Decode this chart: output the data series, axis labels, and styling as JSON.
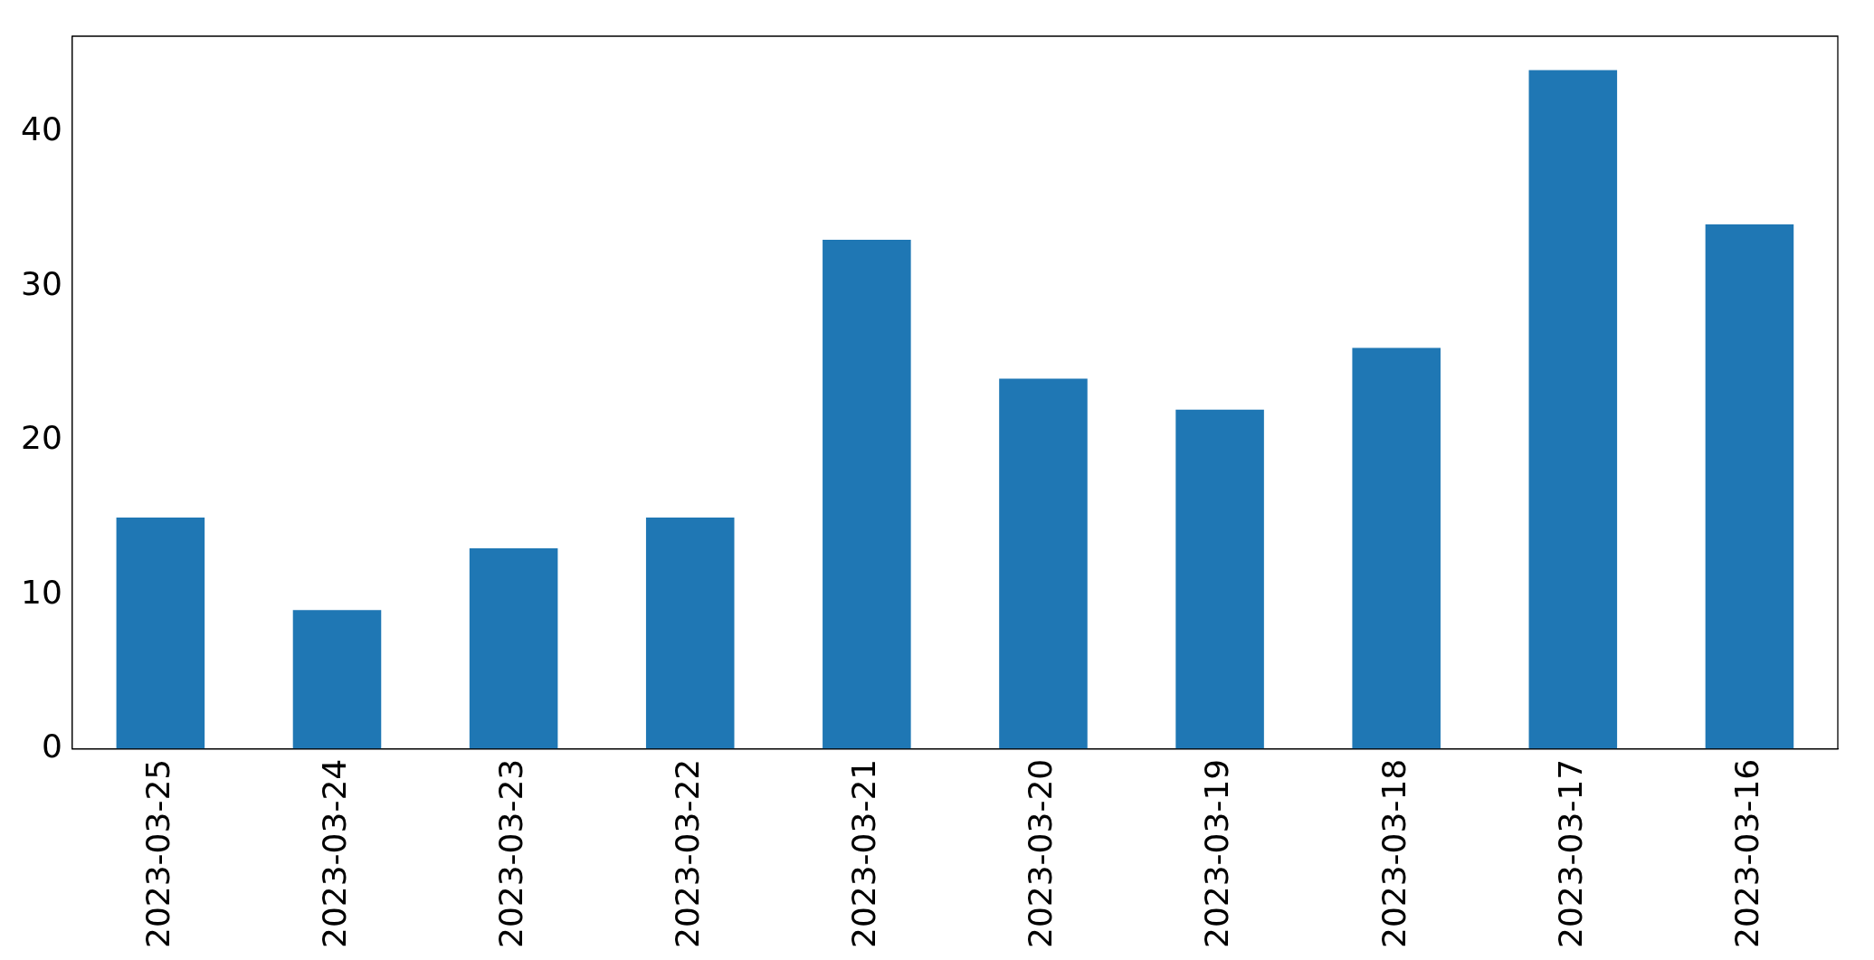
{
  "chart_data": {
    "type": "bar",
    "categories": [
      "2023-03-25",
      "2023-03-24",
      "2023-03-23",
      "2023-03-22",
      "2023-03-21",
      "2023-03-20",
      "2023-03-19",
      "2023-03-18",
      "2023-03-17",
      "2023-03-16"
    ],
    "values": [
      15,
      9,
      13,
      15,
      33,
      24,
      22,
      26,
      44,
      34
    ],
    "color": "#1f77b4",
    "ylim": [
      0,
      46.2
    ],
    "yticks": [
      0,
      10,
      20,
      30,
      40
    ],
    "grid": false,
    "legend": false
  }
}
